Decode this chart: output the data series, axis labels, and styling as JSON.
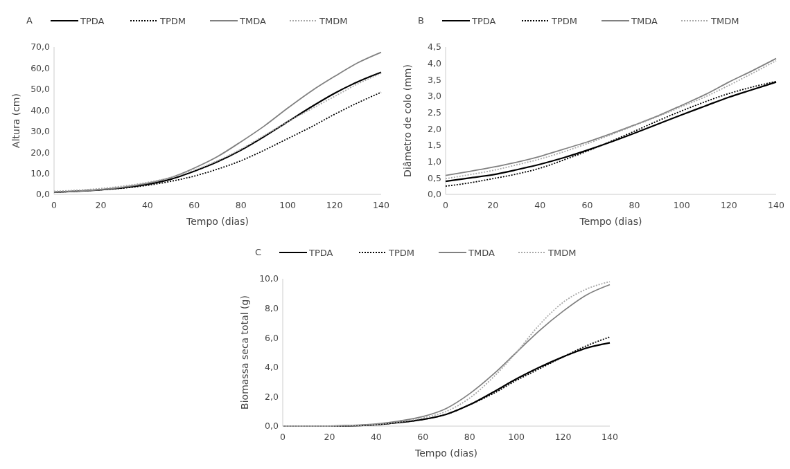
{
  "chart_data": [
    {
      "type": "line",
      "title": "A",
      "xlabel": "Tempo (dias)",
      "ylabel": "Altura (cm)",
      "x": [
        0,
        10,
        20,
        30,
        40,
        50,
        60,
        70,
        80,
        90,
        100,
        110,
        120,
        130,
        140
      ],
      "xlim": [
        0,
        140
      ],
      "xticks": [
        0,
        20,
        40,
        60,
        80,
        100,
        120,
        140
      ],
      "ylim": [
        0,
        70
      ],
      "yticks": [
        {
          "value": 0,
          "label": "0,0"
        },
        {
          "value": 10,
          "label": "10,0"
        },
        {
          "value": 20,
          "label": "20,0"
        },
        {
          "value": 30,
          "label": "30,0"
        },
        {
          "value": 40,
          "label": "40,0"
        },
        {
          "value": 50,
          "label": "50,0"
        },
        {
          "value": 60,
          "label": "60,0"
        },
        {
          "value": 70,
          "label": "70,0"
        }
      ],
      "grid": false,
      "legend": "top",
      "marker": "none",
      "series": [
        {
          "name": "TPDA",
          "color": "#000000",
          "line_style": "solid",
          "values": [
            1,
            1.5,
            2.2,
            3.2,
            4.8,
            7.2,
            11,
            15.5,
            21,
            27.5,
            34.5,
            41.5,
            48,
            53.5,
            58
          ]
        },
        {
          "name": "TPDM",
          "color": "#000000",
          "line_style": "dotted",
          "values": [
            1,
            1.5,
            2.2,
            3,
            4.3,
            6.2,
            8.7,
            12,
            16,
            21,
            26.5,
            32,
            38,
            43.5,
            48.5
          ]
        },
        {
          "name": "TMDA",
          "color": "#808080",
          "line_style": "solid",
          "values": [
            1,
            1.5,
            2.3,
            3.5,
            5.3,
            8,
            12.5,
            18,
            25,
            32.5,
            41,
            49,
            56,
            62.5,
            67.5
          ]
        },
        {
          "name": "TMDM",
          "color": "#a8a8a8",
          "line_style": "dotted",
          "values": [
            1.5,
            2,
            2.8,
            4,
            5.7,
            8,
            11.5,
            16,
            21.5,
            28,
            34.5,
            40.5,
            46.5,
            52.5,
            57.5
          ]
        }
      ]
    },
    {
      "type": "line",
      "title": "B",
      "xlabel": "Tempo (dias)",
      "ylabel": "Diâmetro de colo (mm)",
      "x": [
        0,
        10,
        20,
        30,
        40,
        50,
        60,
        70,
        80,
        90,
        100,
        110,
        120,
        130,
        140
      ],
      "xlim": [
        0,
        140
      ],
      "xticks": [
        0,
        20,
        40,
        60,
        80,
        100,
        120,
        140
      ],
      "ylim": [
        0,
        4.5
      ],
      "yticks": [
        {
          "value": 0,
          "label": "0,0"
        },
        {
          "value": 0.5,
          "label": "0,5"
        },
        {
          "value": 1,
          "label": "1,0"
        },
        {
          "value": 1.5,
          "label": "1,5"
        },
        {
          "value": 2,
          "label": "2,0"
        },
        {
          "value": 2.5,
          "label": "2,5"
        },
        {
          "value": 3,
          "label": "3,0"
        },
        {
          "value": 3.5,
          "label": "3,5"
        },
        {
          "value": 4,
          "label": "4,0"
        },
        {
          "value": 4.5,
          "label": "4,5"
        }
      ],
      "grid": false,
      "legend": "top",
      "marker": "none",
      "series": [
        {
          "name": "TPDA",
          "color": "#000000",
          "line_style": "solid",
          "values": [
            0.4,
            0.5,
            0.6,
            0.75,
            0.92,
            1.12,
            1.35,
            1.6,
            1.87,
            2.15,
            2.43,
            2.7,
            2.97,
            3.2,
            3.43
          ]
        },
        {
          "name": "TPDM",
          "color": "#000000",
          "line_style": "dotted",
          "values": [
            0.25,
            0.35,
            0.48,
            0.62,
            0.8,
            1.05,
            1.32,
            1.62,
            1.93,
            2.25,
            2.55,
            2.83,
            3.08,
            3.28,
            3.45
          ]
        },
        {
          "name": "TMDA",
          "color": "#808080",
          "line_style": "solid",
          "values": [
            0.58,
            0.7,
            0.83,
            0.98,
            1.16,
            1.38,
            1.6,
            1.85,
            2.12,
            2.4,
            2.72,
            3.05,
            3.43,
            3.78,
            4.15
          ]
        },
        {
          "name": "TMDM",
          "color": "#a8a8a8",
          "line_style": "dotted",
          "values": [
            0.48,
            0.6,
            0.73,
            0.9,
            1.08,
            1.3,
            1.55,
            1.82,
            2.1,
            2.38,
            2.68,
            2.98,
            3.33,
            3.7,
            4.08
          ]
        }
      ]
    },
    {
      "type": "line",
      "title": "C",
      "xlabel": "Tempo (dias)",
      "ylabel": "Biomassa seca total (g)",
      "x": [
        0,
        10,
        20,
        30,
        40,
        50,
        60,
        70,
        80,
        90,
        100,
        110,
        120,
        130,
        140
      ],
      "xlim": [
        0,
        140
      ],
      "xticks": [
        0,
        20,
        40,
        60,
        80,
        100,
        120,
        140
      ],
      "ylim": [
        0,
        10
      ],
      "yticks": [
        {
          "value": 0,
          "label": "0,0"
        },
        {
          "value": 2,
          "label": "2,0"
        },
        {
          "value": 4,
          "label": "4,0"
        },
        {
          "value": 6,
          "label": "6,0"
        },
        {
          "value": 8,
          "label": "8,0"
        },
        {
          "value": 10,
          "label": "10,0"
        }
      ],
      "grid": false,
      "legend": "top",
      "marker": "none",
      "series": [
        {
          "name": "TPDA",
          "color": "#000000",
          "line_style": "solid",
          "values": [
            0,
            0,
            0,
            0.03,
            0.1,
            0.25,
            0.45,
            0.8,
            1.45,
            2.3,
            3.2,
            4,
            4.7,
            5.3,
            5.65
          ]
        },
        {
          "name": "TPDM",
          "color": "#000000",
          "line_style": "dotted",
          "values": [
            0,
            0,
            0,
            0.03,
            0.1,
            0.25,
            0.45,
            0.8,
            1.45,
            2.2,
            3.1,
            3.9,
            4.7,
            5.45,
            6.05
          ]
        },
        {
          "name": "TMDA",
          "color": "#808080",
          "line_style": "solid",
          "values": [
            0,
            0,
            0,
            0.05,
            0.15,
            0.35,
            0.65,
            1.2,
            2.2,
            3.5,
            5,
            6.5,
            7.8,
            8.9,
            9.6
          ]
        },
        {
          "name": "TMDM",
          "color": "#a8a8a8",
          "line_style": "dotted",
          "values": [
            0,
            0,
            0,
            0.03,
            0.1,
            0.28,
            0.55,
            1,
            1.9,
            3.3,
            5,
            6.9,
            8.4,
            9.3,
            9.8
          ]
        }
      ]
    }
  ]
}
